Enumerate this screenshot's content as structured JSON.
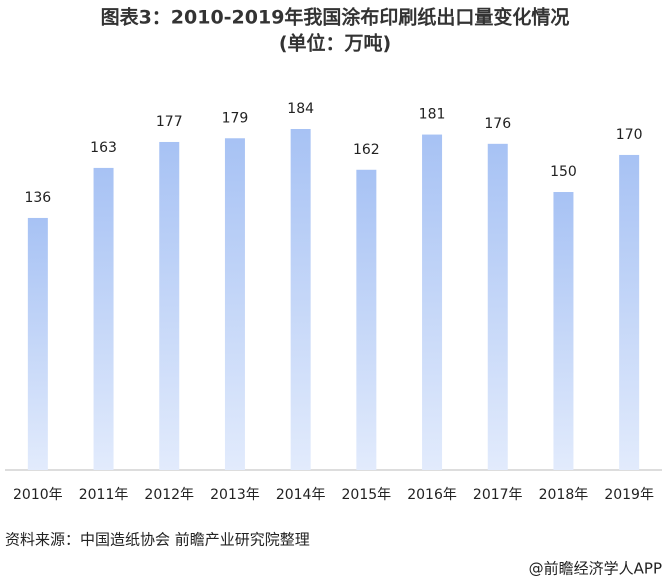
{
  "chart_data": {
    "type": "bar",
    "title": "图表3：2010-2019年我国涂布印刷纸出口量变化情况",
    "subtitle": "(单位：万吨)",
    "categories": [
      "2010年",
      "2011年",
      "2012年",
      "2013年",
      "2014年",
      "2015年",
      "2016年",
      "2017年",
      "2018年",
      "2019年"
    ],
    "values": [
      136,
      163,
      177,
      179,
      184,
      162,
      181,
      176,
      150,
      170
    ],
    "color": "#a7c2f4",
    "source": "资料来源：中国造纸协会 前瞻产业研究院整理",
    "footer": "@前瞻经济学人APP"
  }
}
